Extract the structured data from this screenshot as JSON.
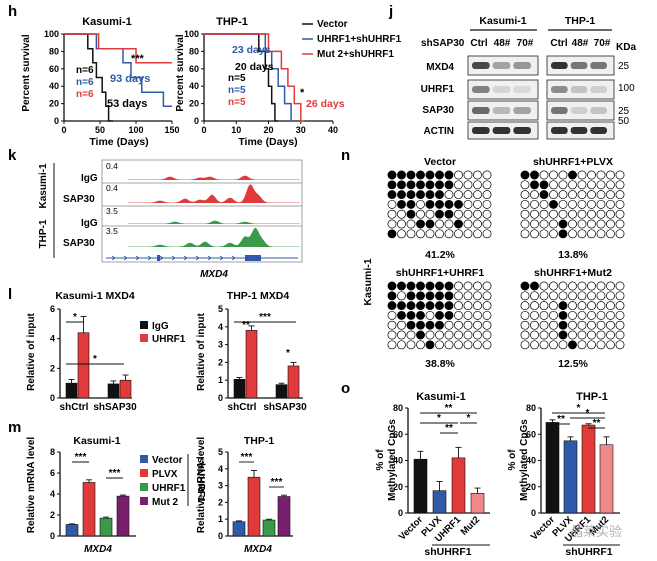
{
  "figure": {
    "panel_labels": {
      "h": "h",
      "j": "j",
      "k": "k",
      "l": "l",
      "m": "m",
      "n": "n",
      "o": "o"
    },
    "watermark": "晶莱实验",
    "colors": {
      "black": "#111111",
      "blue": "#2e5aa8",
      "red": "#e03a3a",
      "green": "#3a9a4a",
      "purple": "#7a1e6e",
      "pink": "#f08a8a",
      "gray": "#7f7f7f"
    }
  },
  "h": {
    "kasumi": {
      "title": "Kasumi-1",
      "ylabel": "Percent survival",
      "xlabel": "Time (Days)",
      "xticks": [
        "0",
        "50",
        "100",
        "150"
      ],
      "yticks": [
        "0",
        "20",
        "40",
        "60",
        "80",
        "100"
      ],
      "ns": [
        "n=6",
        "n=6",
        "n=6"
      ],
      "days_blue": "93 days",
      "days_black": "53 days",
      "sig": "***",
      "chart_data": {
        "type": "line",
        "xlim": [
          0,
          150
        ],
        "ylim": [
          0,
          100
        ],
        "series": [
          {
            "name": "Vector",
            "color": "black",
            "points": [
              [
                0,
                100
              ],
              [
                33,
                100
              ],
              [
                33,
                83
              ],
              [
                40,
                83
              ],
              [
                40,
                67
              ],
              [
                45,
                67
              ],
              [
                45,
                50
              ],
              [
                53,
                50
              ],
              [
                53,
                33
              ],
              [
                58,
                33
              ],
              [
                58,
                17
              ],
              [
                62,
                17
              ],
              [
                62,
                0
              ],
              [
                68,
                0
              ]
            ]
          },
          {
            "name": "UHRF1+shUHRF1",
            "color": "blue",
            "points": [
              [
                0,
                100
              ],
              [
                45,
                100
              ],
              [
                45,
                83
              ],
              [
                82,
                83
              ],
              [
                82,
                67
              ],
              [
                93,
                67
              ],
              [
                93,
                50
              ],
              [
                108,
                50
              ],
              [
                108,
                33
              ],
              [
                138,
                33
              ],
              [
                138,
                17
              ],
              [
                150,
                17
              ]
            ]
          },
          {
            "name": "Mut 2+shUHRF1",
            "color": "red",
            "points": [
              [
                0,
                100
              ],
              [
                48,
                100
              ],
              [
                48,
                83
              ],
              [
                100,
                83
              ],
              [
                100,
                67
              ],
              [
                150,
                67
              ]
            ]
          }
        ]
      }
    },
    "thp": {
      "title": "THP-1",
      "ylabel": "Percent survival",
      "xlabel": "Time (Days)",
      "xticks": [
        "0",
        "10",
        "20",
        "30",
        "40"
      ],
      "yticks": [
        "0",
        "20",
        "40",
        "60",
        "80",
        "100"
      ],
      "ns": [
        "n=5",
        "n=5",
        "n=5"
      ],
      "days_blue": "23 days",
      "days_black": "20 days",
      "days_red": "26 days",
      "sig": "*",
      "legend": [
        "Vector",
        "UHRF1+shUHRF1",
        "Mut 2+shUHRF1"
      ],
      "chart_data": {
        "type": "line",
        "xlim": [
          0,
          40
        ],
        "ylim": [
          0,
          100
        ],
        "series": [
          {
            "name": "Vector",
            "color": "black",
            "points": [
              [
                0,
                100
              ],
              [
                17,
                100
              ],
              [
                17,
                80
              ],
              [
                19,
                80
              ],
              [
                19,
                60
              ],
              [
                20,
                60
              ],
              [
                20,
                40
              ],
              [
                21,
                40
              ],
              [
                21,
                20
              ],
              [
                22,
                20
              ],
              [
                22,
                0
              ],
              [
                23,
                0
              ]
            ]
          },
          {
            "name": "UHRF1+shUHRF1",
            "color": "blue",
            "points": [
              [
                0,
                100
              ],
              [
                19,
                100
              ],
              [
                19,
                80
              ],
              [
                21,
                80
              ],
              [
                21,
                60
              ],
              [
                23,
                60
              ],
              [
                23,
                40
              ],
              [
                25,
                40
              ],
              [
                25,
                20
              ],
              [
                27,
                20
              ],
              [
                27,
                0
              ],
              [
                28,
                0
              ]
            ]
          },
          {
            "name": "Mut 2+shUHRF1",
            "color": "red",
            "points": [
              [
                0,
                100
              ],
              [
                20,
                100
              ],
              [
                20,
                80
              ],
              [
                24,
                80
              ],
              [
                24,
                60
              ],
              [
                26,
                60
              ],
              [
                26,
                40
              ],
              [
                28,
                40
              ],
              [
                28,
                20
              ],
              [
                30,
                20
              ],
              [
                30,
                0
              ],
              [
                31,
                0
              ]
            ]
          }
        ]
      }
    }
  },
  "j": {
    "cell1": "Kasumi-1",
    "cell2": "THP-1",
    "sh_label": "shSAP30",
    "lanes": [
      "Ctrl",
      "48#",
      "70#"
    ],
    "kda": "KDa",
    "proteins": [
      "MXD4",
      "UHRF1",
      "SAP30",
      "ACTIN"
    ],
    "markers": [
      "25",
      "100",
      "25",
      "50"
    ]
  },
  "k": {
    "cell1": "Kasumi-1",
    "cell2": "THP-1",
    "tracks": [
      {
        "label": "IgG",
        "scale": "0.4"
      },
      {
        "label": "SAP30",
        "scale": "0.4"
      },
      {
        "label": "IgG",
        "scale": "3.5"
      },
      {
        "label": "SAP30",
        "scale": "3.5"
      }
    ],
    "gene": "MXD4"
  },
  "l": {
    "k_title": "Kasumi-1 MXD4",
    "t_title": "THP-1 MXD4",
    "ylabel": "Relative of input",
    "legend": [
      "IgG",
      "UHRF1"
    ],
    "groups": [
      "shCtrl",
      "shSAP30"
    ],
    "k_sig": [
      "*",
      "*"
    ],
    "t_sig": [
      "**",
      "***",
      "*"
    ],
    "k_yticks": [
      "0",
      "2",
      "4",
      "6"
    ],
    "t_yticks": [
      "0",
      "1",
      "2",
      "3",
      "4",
      "5"
    ],
    "chart_data": [
      {
        "type": "bar",
        "title": "Kasumi-1 MXD4",
        "categories": [
          "shCtrl",
          "shSAP30"
        ],
        "ylim": [
          0,
          6
        ],
        "series": [
          {
            "name": "IgG",
            "values": [
              1.0,
              0.95
            ]
          },
          {
            "name": "UHRF1",
            "values": [
              4.4,
              1.2
            ]
          }
        ]
      },
      {
        "type": "bar",
        "title": "THP-1 MXD4",
        "categories": [
          "shCtrl",
          "shSAP30"
        ],
        "ylim": [
          0,
          5
        ],
        "series": [
          {
            "name": "IgG",
            "values": [
              1.05,
              0.75
            ]
          },
          {
            "name": "UHRF1",
            "values": [
              3.8,
              1.8
            ]
          }
        ]
      }
    ]
  },
  "m": {
    "k_title": "Kasumi-1",
    "t_title": "THP-1",
    "ylabel": "Relative mRNA level",
    "xlabel": "MXD4",
    "legend": [
      "Vector",
      "PLVX",
      "UHRF1",
      "Mut 2"
    ],
    "sh_label": "shUHRF1",
    "k_sig": [
      "***",
      "***"
    ],
    "t_sig": [
      "***",
      "***"
    ],
    "k_yticks": [
      "0",
      "2",
      "4",
      "6",
      "8"
    ],
    "t_yticks": [
      "0",
      "1",
      "2",
      "3",
      "4",
      "5"
    ],
    "chart_data": [
      {
        "type": "bar",
        "title": "Kasumi-1",
        "categories": [
          "Vector",
          "PLVX",
          "UHRF1",
          "Mut 2"
        ],
        "ylim": [
          0,
          8
        ],
        "values": [
          1.1,
          5.1,
          1.7,
          3.8
        ]
      },
      {
        "type": "bar",
        "title": "THP-1",
        "categories": [
          "Vector",
          "PLVX",
          "UHRF1",
          "Mut 2"
        ],
        "ylim": [
          0,
          5
        ],
        "values": [
          0.85,
          3.5,
          0.95,
          2.35
        ]
      }
    ]
  },
  "n": {
    "side": "Kasumi-1",
    "grids": [
      {
        "title": "Vector",
        "pct": "41.2%"
      },
      {
        "title": "shUHRF1+PLVX",
        "pct": "13.8%"
      },
      {
        "title": "shUHRF1+UHRF1",
        "pct": "38.8%"
      },
      {
        "title": "shUHRF1+Mut2",
        "pct": "12.5%"
      }
    ]
  },
  "o": {
    "k_title": "Kasumi-1",
    "t_title": "THP-1",
    "ylabel_1": "% of",
    "ylabel_2": "Methylated CpGs",
    "categories": [
      "Vector",
      "PLVX",
      "UHRF1",
      "Mut2"
    ],
    "sh_label": "shUHRF1",
    "k_sig": [
      "**",
      "*",
      "**",
      "*"
    ],
    "t_sig": [
      "*",
      "**",
      "*",
      "**"
    ],
    "k_yticks": [
      "0",
      "20",
      "40",
      "60",
      "80"
    ],
    "t_yticks": [
      "0",
      "20",
      "40",
      "60",
      "80"
    ],
    "chart_data": [
      {
        "type": "bar",
        "title": "Kasumi-1",
        "categories": [
          "Vector",
          "PLVX",
          "UHRF1",
          "Mut2"
        ],
        "ylim": [
          0,
          80
        ],
        "values": [
          41,
          17,
          42,
          15
        ]
      },
      {
        "type": "bar",
        "title": "THP-1",
        "categories": [
          "Vector",
          "PLVX",
          "UHRF1",
          "Mut2"
        ],
        "ylim": [
          0,
          80
        ],
        "values": [
          69,
          55,
          67,
          52
        ]
      }
    ]
  }
}
